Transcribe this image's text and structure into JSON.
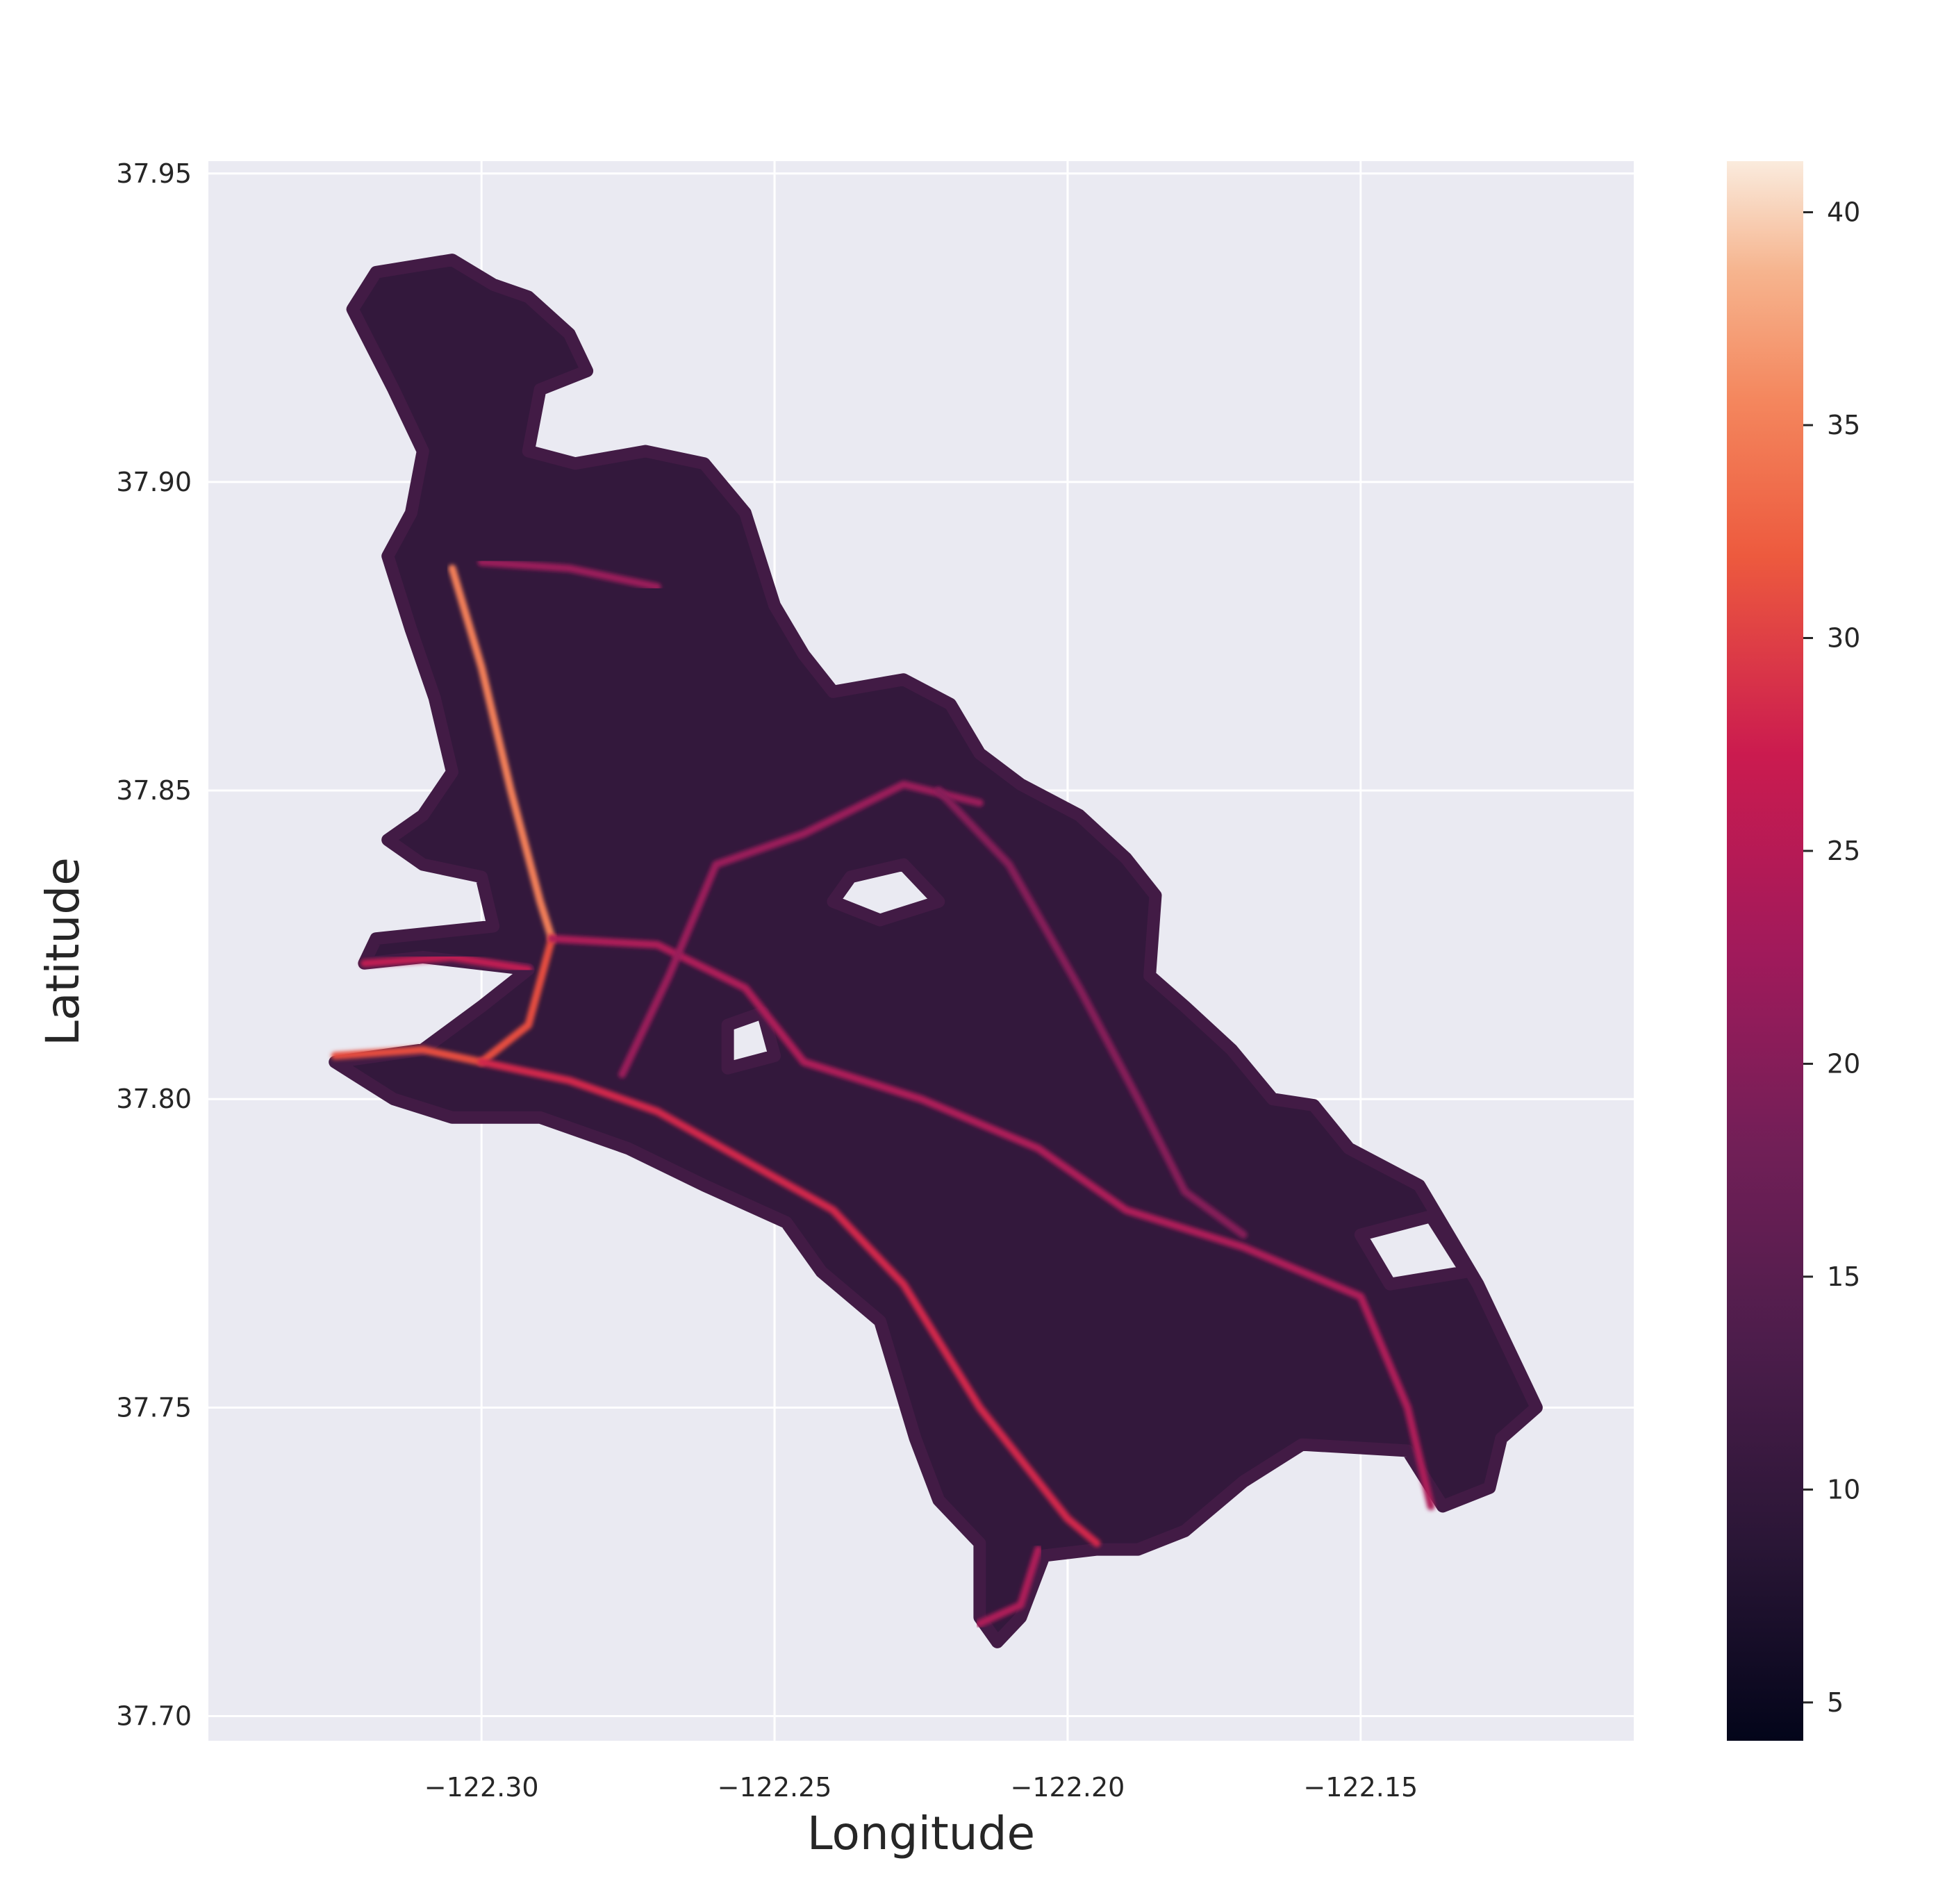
{
  "chart_data": {
    "type": "heatmap",
    "title": "",
    "xlabel": "Longitude",
    "ylabel": "Latitude",
    "xlim": [
      -122.3466,
      -122.1034
    ],
    "ylim": [
      37.696,
      37.952
    ],
    "xticks": [
      -122.3,
      -122.25,
      -122.2,
      -122.15
    ],
    "xtick_labels": [
      "−122.30",
      "−122.25",
      "−122.20",
      "−122.15"
    ],
    "yticks": [
      37.7,
      37.75,
      37.8,
      37.85,
      37.9,
      37.95
    ],
    "ytick_labels": [
      "37.70",
      "37.75",
      "37.80",
      "37.85",
      "37.90",
      "37.95"
    ],
    "grid": true,
    "colorbar": {
      "range": [
        4.1,
        41.2
      ],
      "ticks": [
        5,
        10,
        15,
        20,
        25,
        30,
        35,
        40
      ],
      "tick_labels": [
        "5",
        "10",
        "15",
        "20",
        "25",
        "30",
        "35",
        "40"
      ],
      "colormap": "rocket"
    },
    "background_value": 10,
    "region_outline": [
      [
        -122.318,
        37.934
      ],
      [
        -122.305,
        37.936
      ],
      [
        -122.298,
        37.932
      ],
      [
        -122.292,
        37.93
      ],
      [
        -122.285,
        37.924
      ],
      [
        -122.282,
        37.918
      ],
      [
        -122.29,
        37.915
      ],
      [
        -122.292,
        37.905
      ],
      [
        -122.284,
        37.903
      ],
      [
        -122.272,
        37.905
      ],
      [
        -122.262,
        37.903
      ],
      [
        -122.255,
        37.895
      ],
      [
        -122.25,
        37.88
      ],
      [
        -122.245,
        37.872
      ],
      [
        -122.24,
        37.866
      ],
      [
        -122.228,
        37.868
      ],
      [
        -122.22,
        37.864
      ],
      [
        -122.215,
        37.856
      ],
      [
        -122.208,
        37.851
      ],
      [
        -122.198,
        37.846
      ],
      [
        -122.19,
        37.839
      ],
      [
        -122.185,
        37.833
      ],
      [
        -122.186,
        37.82
      ],
      [
        -122.18,
        37.815
      ],
      [
        -122.172,
        37.808
      ],
      [
        -122.165,
        37.8
      ],
      [
        -122.158,
        37.799
      ],
      [
        -122.152,
        37.792
      ],
      [
        -122.14,
        37.786
      ],
      [
        -122.13,
        37.77
      ],
      [
        -122.125,
        37.76
      ],
      [
        -122.12,
        37.75
      ],
      [
        -122.126,
        37.745
      ],
      [
        -122.128,
        37.737
      ],
      [
        -122.136,
        37.734
      ],
      [
        -122.142,
        37.743
      ],
      [
        -122.16,
        37.744
      ],
      [
        -122.17,
        37.738
      ],
      [
        -122.18,
        37.73
      ],
      [
        -122.188,
        37.727
      ],
      [
        -122.195,
        37.727
      ],
      [
        -122.204,
        37.726
      ],
      [
        -122.208,
        37.716
      ],
      [
        -122.212,
        37.712
      ],
      [
        -122.215,
        37.716
      ],
      [
        -122.215,
        37.728
      ],
      [
        -122.222,
        37.735
      ],
      [
        -122.226,
        37.745
      ],
      [
        -122.232,
        37.764
      ],
      [
        -122.242,
        37.772
      ],
      [
        -122.248,
        37.78
      ],
      [
        -122.262,
        37.786
      ],
      [
        -122.275,
        37.792
      ],
      [
        -122.29,
        37.797
      ],
      [
        -122.305,
        37.797
      ],
      [
        -122.315,
        37.8
      ],
      [
        -122.325,
        37.806
      ],
      [
        -122.31,
        37.808
      ],
      [
        -122.3,
        37.815
      ],
      [
        -122.292,
        37.821
      ],
      [
        -122.31,
        37.823
      ],
      [
        -122.32,
        37.822
      ],
      [
        -122.318,
        37.826
      ],
      [
        -122.298,
        37.828
      ],
      [
        -122.3,
        37.836
      ],
      [
        -122.31,
        37.838
      ],
      [
        -122.316,
        37.842
      ],
      [
        -122.31,
        37.846
      ],
      [
        -122.305,
        37.853
      ],
      [
        -122.308,
        37.865
      ],
      [
        -122.312,
        37.876
      ],
      [
        -122.316,
        37.888
      ],
      [
        -122.312,
        37.895
      ],
      [
        -122.31,
        37.905
      ],
      [
        -122.315,
        37.915
      ],
      [
        -122.322,
        37.928
      ]
    ],
    "holes": [
      [
        [
          -122.237,
          37.836
        ],
        [
          -122.228,
          37.838
        ],
        [
          -122.222,
          37.832
        ],
        [
          -122.232,
          37.829
        ],
        [
          -122.24,
          37.832
        ]
      ],
      [
        [
          -122.258,
          37.812
        ],
        [
          -122.252,
          37.814
        ],
        [
          -122.25,
          37.807
        ],
        [
          -122.258,
          37.805
        ]
      ],
      [
        [
          -122.15,
          37.778
        ],
        [
          -122.138,
          37.781
        ],
        [
          -122.132,
          37.772
        ],
        [
          -122.145,
          37.77
        ]
      ]
    ],
    "corridors": [
      {
        "value": 35,
        "points": [
          [
            -122.305,
            37.886
          ],
          [
            -122.3,
            37.87
          ],
          [
            -122.295,
            37.85
          ],
          [
            -122.29,
            37.832
          ],
          [
            -122.288,
            37.826
          ]
        ]
      },
      {
        "value": 31,
        "points": [
          [
            -122.288,
            37.826
          ],
          [
            -122.292,
            37.812
          ],
          [
            -122.3,
            37.806
          ],
          [
            -122.31,
            37.808
          ],
          [
            -122.325,
            37.807
          ]
        ]
      },
      {
        "value": 28,
        "points": [
          [
            -122.3,
            37.806
          ],
          [
            -122.285,
            37.803
          ],
          [
            -122.27,
            37.798
          ],
          [
            -122.255,
            37.79
          ],
          [
            -122.24,
            37.782
          ],
          [
            -122.228,
            37.77
          ],
          [
            -122.215,
            37.75
          ],
          [
            -122.2,
            37.732
          ],
          [
            -122.195,
            37.728
          ]
        ]
      },
      {
        "value": 24,
        "points": [
          [
            -122.288,
            37.826
          ],
          [
            -122.27,
            37.825
          ],
          [
            -122.255,
            37.818
          ],
          [
            -122.245,
            37.806
          ],
          [
            -122.225,
            37.8
          ],
          [
            -122.205,
            37.792
          ],
          [
            -122.19,
            37.782
          ],
          [
            -122.17,
            37.776
          ],
          [
            -122.15,
            37.768
          ],
          [
            -122.142,
            37.75
          ],
          [
            -122.138,
            37.734
          ]
        ]
      },
      {
        "value": 22,
        "points": [
          [
            -122.276,
            37.804
          ],
          [
            -122.268,
            37.82
          ],
          [
            -122.26,
            37.838
          ],
          [
            -122.245,
            37.843
          ],
          [
            -122.228,
            37.851
          ],
          [
            -122.215,
            37.848
          ]
        ]
      },
      {
        "value": 20,
        "points": [
          [
            -122.222,
            37.85
          ],
          [
            -122.21,
            37.838
          ],
          [
            -122.198,
            37.818
          ],
          [
            -122.188,
            37.8
          ],
          [
            -122.18,
            37.785
          ],
          [
            -122.17,
            37.778
          ]
        ]
      },
      {
        "value": 26,
        "points": [
          [
            -122.292,
            37.821
          ],
          [
            -122.305,
            37.823
          ],
          [
            -122.32,
            37.822
          ]
        ]
      },
      {
        "value": 24,
        "points": [
          [
            -122.205,
            37.727
          ],
          [
            -122.208,
            37.718
          ],
          [
            -122.215,
            37.715
          ]
        ]
      },
      {
        "value": 22,
        "points": [
          [
            -122.3,
            37.887
          ],
          [
            -122.285,
            37.886
          ],
          [
            -122.27,
            37.883
          ]
        ]
      }
    ]
  }
}
